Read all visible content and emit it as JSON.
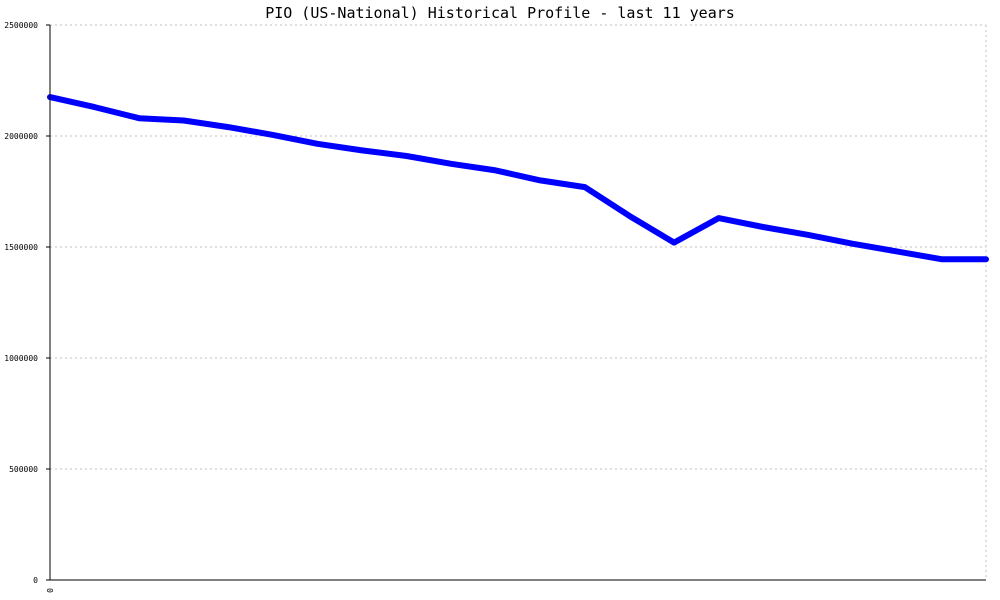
{
  "chart_data": {
    "type": "line",
    "title": "PIO (US-National) Historical Profile - last 11 years",
    "xlabel": "",
    "ylabel": "",
    "x_tick_labels": [
      "0"
    ],
    "y_ticks": [
      0,
      500000,
      1000000,
      1500000,
      2000000,
      2500000
    ],
    "y_tick_labels": [
      "0",
      "500000",
      "1000000",
      "1500000",
      "2000000",
      "2500000"
    ],
    "ylim": [
      0,
      2500000
    ],
    "grid": true,
    "grid_style": "dotted",
    "series": [
      {
        "color": "#0000ff",
        "x": [
          0,
          1,
          2,
          3,
          4,
          5,
          6,
          7,
          8,
          9,
          10,
          11,
          12,
          13,
          14,
          15,
          16,
          17,
          18,
          19,
          20,
          21
        ],
        "y": [
          2175000,
          2130000,
          2080000,
          2070000,
          2040000,
          2005000,
          1965000,
          1935000,
          1910000,
          1875000,
          1845000,
          1800000,
          1770000,
          1640000,
          1520000,
          1630000,
          1590000,
          1555000,
          1515000,
          1480000,
          1445000,
          1445000
        ]
      }
    ],
    "colors": {
      "line": "#0000ff",
      "axis": "#000000",
      "grid": "#c0c0c0",
      "background": "#ffffff"
    }
  }
}
